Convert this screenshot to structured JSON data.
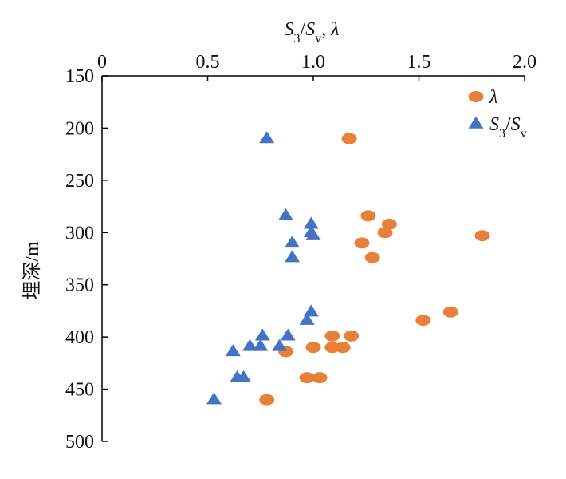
{
  "chart_data": {
    "type": "scatter",
    "x_axis": {
      "label": "S3/Sv, λ",
      "label_parts": [
        {
          "text": "S",
          "style": "italic"
        },
        {
          "text": "3",
          "style": "sub"
        },
        {
          "text": "/",
          "style": "normal"
        },
        {
          "text": "S",
          "style": "italic"
        },
        {
          "text": "v",
          "style": "sub"
        },
        {
          "text": ", ",
          "style": "normal"
        },
        {
          "text": "λ",
          "style": "italic"
        }
      ],
      "position": "top",
      "range": [
        0,
        2.0
      ],
      "ticks": [
        0,
        0.5,
        1.0,
        1.5,
        2.0
      ],
      "tick_labels": [
        "0",
        "0.5",
        "1.0",
        "1.5",
        "2.0"
      ]
    },
    "y_axis": {
      "label": "埋深/m",
      "range": [
        150,
        500
      ],
      "inverted": true,
      "ticks": [
        150,
        200,
        250,
        300,
        350,
        400,
        450,
        500
      ],
      "tick_labels": [
        "150",
        "200",
        "250",
        "300",
        "350",
        "400",
        "450",
        "500"
      ]
    },
    "grid": false,
    "legend": {
      "placement": "top-right",
      "entries": [
        {
          "series": "lambda",
          "label": "λ",
          "label_parts": [
            {
              "text": "λ",
              "style": "italic"
            }
          ]
        },
        {
          "series": "s3sv",
          "label": "S3/Sv",
          "label_parts": [
            {
              "text": "S",
              "style": "italic"
            },
            {
              "text": "3",
              "style": "sub"
            },
            {
              "text": "/",
              "style": "normal"
            },
            {
              "text": "S",
              "style": "italic"
            },
            {
              "text": "v",
              "style": "sub"
            }
          ]
        }
      ]
    },
    "series": [
      {
        "id": "lambda",
        "name": "λ",
        "marker": "ellipse",
        "color": "#E8803A",
        "points": [
          {
            "x": 1.17,
            "y": 210
          },
          {
            "x": 1.26,
            "y": 284
          },
          {
            "x": 1.36,
            "y": 292
          },
          {
            "x": 1.34,
            "y": 300
          },
          {
            "x": 1.8,
            "y": 303
          },
          {
            "x": 1.23,
            "y": 310
          },
          {
            "x": 1.28,
            "y": 324
          },
          {
            "x": 1.65,
            "y": 376
          },
          {
            "x": 1.52,
            "y": 384
          },
          {
            "x": 1.09,
            "y": 399
          },
          {
            "x": 1.18,
            "y": 399
          },
          {
            "x": 1.0,
            "y": 410
          },
          {
            "x": 1.09,
            "y": 410
          },
          {
            "x": 1.14,
            "y": 410
          },
          {
            "x": 0.87,
            "y": 414
          },
          {
            "x": 0.97,
            "y": 439
          },
          {
            "x": 1.03,
            "y": 439
          },
          {
            "x": 0.78,
            "y": 460
          }
        ]
      },
      {
        "id": "s3sv",
        "name": "S3/Sv",
        "marker": "triangle",
        "color": "#4472C4",
        "points": [
          {
            "x": 0.78,
            "y": 210
          },
          {
            "x": 0.87,
            "y": 284
          },
          {
            "x": 0.99,
            "y": 292
          },
          {
            "x": 0.99,
            "y": 300
          },
          {
            "x": 1.0,
            "y": 303
          },
          {
            "x": 0.9,
            "y": 310
          },
          {
            "x": 0.9,
            "y": 324
          },
          {
            "x": 0.99,
            "y": 376
          },
          {
            "x": 0.97,
            "y": 384
          },
          {
            "x": 0.76,
            "y": 399
          },
          {
            "x": 0.88,
            "y": 399
          },
          {
            "x": 0.7,
            "y": 409
          },
          {
            "x": 0.75,
            "y": 409
          },
          {
            "x": 0.84,
            "y": 409
          },
          {
            "x": 0.62,
            "y": 414
          },
          {
            "x": 0.64,
            "y": 439
          },
          {
            "x": 0.67,
            "y": 439
          },
          {
            "x": 0.53,
            "y": 460
          }
        ]
      }
    ]
  }
}
